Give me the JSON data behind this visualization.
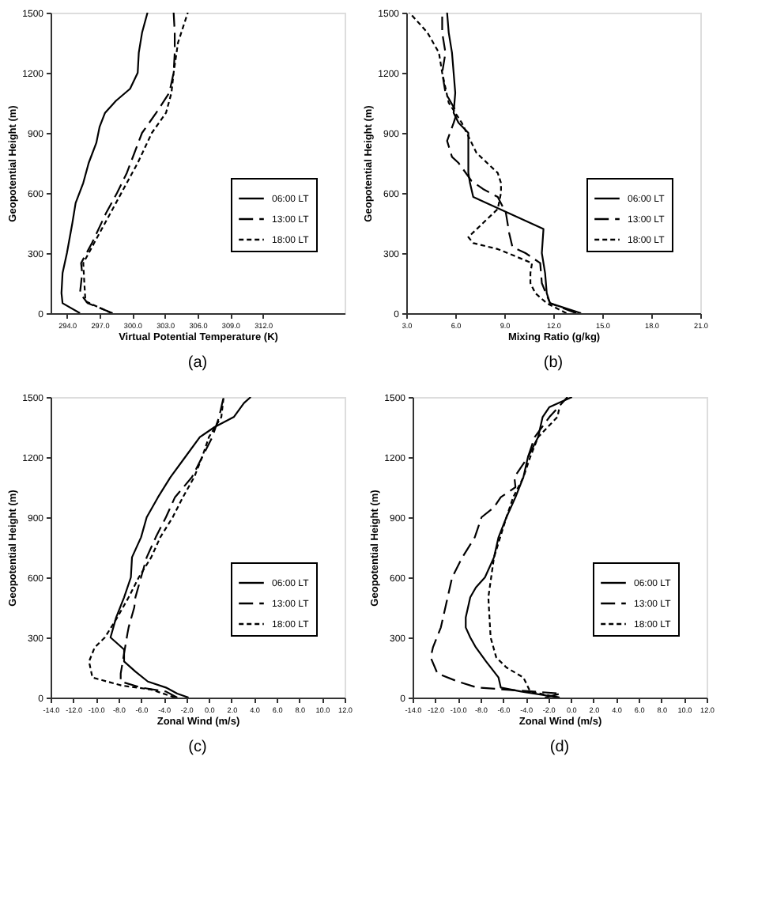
{
  "chart_data": [
    {
      "type": "line",
      "title": "(a)",
      "xlabel": "Virtual Potential Temperature (K)",
      "ylabel": "Geopotential Height (m)",
      "legend": "right",
      "grid": false,
      "xlim": [
        292.5,
        319.5
      ],
      "ylim": [
        0,
        1500
      ],
      "xticks": [
        {
          "value": 294,
          "label": "294.0"
        },
        {
          "value": 297,
          "label": "297.0"
        },
        {
          "value": 300,
          "label": "300.0"
        },
        {
          "value": 303,
          "label": "303.0"
        },
        {
          "value": 306,
          "label": "306.0"
        },
        {
          "value": 309,
          "label": "309.0"
        },
        {
          "value": 312,
          "label": "312.0"
        }
      ],
      "yticks": [
        0,
        300,
        600,
        900,
        1200,
        1500
      ],
      "series": [
        {
          "name": "06:00 LT",
          "color": "#000000",
          "line_style": "solid",
          "x": [
            295.2,
            293.6,
            293.5,
            293.6,
            294.0,
            294.5,
            294.8,
            295.5,
            296.0,
            296.7,
            297.0,
            297.5,
            298.5,
            299.8,
            300.5,
            300.6,
            300.9,
            301.4
          ],
          "values": [
            0,
            50,
            100,
            200,
            300,
            450,
            550,
            650,
            750,
            850,
            930,
            1000,
            1060,
            1120,
            1200,
            1300,
            1400,
            1500
          ]
        },
        {
          "name": "13:00 LT",
          "color": "#000000",
          "line_style": "dashed",
          "x": [
            298.2,
            295.9,
            295.2,
            295.4,
            295.3,
            296.3,
            297.6,
            298.6,
            299.5,
            300.9,
            302.2,
            303.4,
            303.8,
            303.9,
            303.9,
            303.8
          ],
          "values": [
            0,
            50,
            100,
            200,
            250,
            350,
            500,
            600,
            700,
            900,
            1000,
            1100,
            1200,
            1300,
            1400,
            1500
          ]
        },
        {
          "name": "18:00 LT",
          "color": "#000000",
          "line_style": "dotted",
          "x": [
            298.1,
            295.7,
            295.6,
            295.5,
            296.5,
            297.5,
            299.0,
            300.5,
            301.8,
            303.1,
            303.6,
            303.8,
            304.2,
            305.1
          ],
          "values": [
            0,
            60,
            150,
            250,
            350,
            450,
            600,
            750,
            900,
            1000,
            1100,
            1200,
            1350,
            1500
          ]
        }
      ]
    },
    {
      "type": "line",
      "title": "(b)",
      "xlabel": "Mixing Ratio (g/kg)",
      "ylabel": "Geopotential Height (m)",
      "legend": "right",
      "grid": false,
      "xlim": [
        3,
        21
      ],
      "ylim": [
        0,
        1500
      ],
      "xticks": [
        {
          "value": 3,
          "label": "3.0"
        },
        {
          "value": 6,
          "label": "6.0"
        },
        {
          "value": 9,
          "label": "9.0"
        },
        {
          "value": 12,
          "label": "12.0"
        },
        {
          "value": 15,
          "label": "15.0"
        },
        {
          "value": 18,
          "label": "18.0"
        },
        {
          "value": 21,
          "label": "21.0"
        }
      ],
      "yticks": [
        0,
        300,
        600,
        900,
        1200,
        1500
      ],
      "series": [
        {
          "name": "06:00 LT",
          "color": "#000000",
          "line_style": "solid",
          "x": [
            13.7,
            11.8,
            11.6,
            11.5,
            11.3,
            11.4,
            7.1,
            6.9,
            6.8,
            6.8,
            6.2,
            5.9,
            6.0,
            5.9,
            5.8,
            5.6,
            5.5
          ],
          "values": [
            0,
            50,
            100,
            200,
            300,
            420,
            580,
            650,
            700,
            900,
            950,
            1000,
            1100,
            1200,
            1300,
            1400,
            1500
          ]
        },
        {
          "name": "13:00 LT",
          "color": "#000000",
          "line_style": "dashed",
          "x": [
            13.4,
            11.8,
            11.3,
            11.2,
            10.3,
            9.5,
            9.3,
            9.1,
            8.6,
            7.7,
            7.0,
            6.2,
            5.8,
            5.5,
            5.9,
            6.1,
            5.4,
            5.2,
            5.4,
            5.2,
            5.2
          ],
          "values": [
            0,
            50,
            150,
            250,
            300,
            330,
            400,
            500,
            580,
            620,
            660,
            750,
            780,
            860,
            950,
            1000,
            1100,
            1200,
            1300,
            1400,
            1480
          ]
        },
        {
          "name": "18:00 LT",
          "color": "#000000",
          "line_style": "dotted",
          "x": [
            12.8,
            11.6,
            10.9,
            10.6,
            10.6,
            10.7,
            8.6,
            7.1,
            6.8,
            7.7,
            8.6,
            8.8,
            8.8,
            8.6,
            7.3,
            6.7,
            6.4,
            5.6,
            5.2,
            5.0,
            4.3,
            3.2
          ],
          "values": [
            0,
            50,
            100,
            150,
            200,
            250,
            320,
            350,
            380,
            450,
            520,
            600,
            650,
            700,
            800,
            900,
            950,
            1050,
            1200,
            1300,
            1400,
            1500
          ]
        }
      ]
    },
    {
      "type": "line",
      "title": "(c)",
      "xlabel": "Zonal Wind (m/s)",
      "ylabel": "Geopotential Height (m)",
      "legend": "right",
      "grid": false,
      "xlim": [
        -14,
        12
      ],
      "ylim": [
        0,
        1500
      ],
      "xticks": [
        {
          "value": -14,
          "label": "-14.0"
        },
        {
          "value": -12,
          "label": "-12.0"
        },
        {
          "value": -10,
          "label": "-10.0"
        },
        {
          "value": -8,
          "label": "-8.0"
        },
        {
          "value": -6,
          "label": "-6.0"
        },
        {
          "value": -4,
          "label": "-4.0"
        },
        {
          "value": -2,
          "label": "-2.0"
        },
        {
          "value": 0,
          "label": "0.0"
        },
        {
          "value": 2,
          "label": "2.0"
        },
        {
          "value": 4,
          "label": "4.0"
        },
        {
          "value": 6,
          "label": "6.0"
        },
        {
          "value": 8,
          "label": "8.0"
        },
        {
          "value": 10,
          "label": "10.0"
        },
        {
          "value": 12,
          "label": "12.0"
        }
      ],
      "yticks": [
        0,
        300,
        600,
        900,
        1200,
        1500
      ],
      "series": [
        {
          "name": "06:00 LT",
          "color": "#000000",
          "line_style": "solid",
          "x": [
            -1.8,
            -2.8,
            -3.8,
            -5.4,
            -6.5,
            -7.5,
            -7.5,
            -8.7,
            -8.2,
            -7.5,
            -6.9,
            -6.8,
            -6.0,
            -5.5,
            -4.5,
            -3.4,
            -2.1,
            -0.8,
            0.5,
            2.2,
            3.1,
            3.7
          ],
          "values": [
            0,
            20,
            50,
            80,
            130,
            180,
            240,
            300,
            400,
            500,
            600,
            700,
            800,
            900,
            1000,
            1100,
            1200,
            1300,
            1350,
            1400,
            1470,
            1500
          ]
        },
        {
          "name": "13:00 LT",
          "color": "#000000",
          "line_style": "dashed",
          "x": [
            -2.8,
            -3.8,
            -6.0,
            -7.8,
            -7.8,
            -7.2,
            -7.1,
            -6.6,
            -6.5,
            -6.0,
            -5.5,
            -4.7,
            -3.8,
            -3.0,
            -1.5,
            -0.6,
            0.3,
            0.9,
            1.3
          ],
          "values": [
            0,
            30,
            50,
            80,
            120,
            320,
            350,
            450,
            500,
            600,
            700,
            800,
            900,
            1000,
            1100,
            1200,
            1300,
            1400,
            1500
          ]
        },
        {
          "name": "18:00 LT",
          "color": "#000000",
          "line_style": "dotted",
          "x": [
            -3.0,
            -5.1,
            -7.7,
            -10.3,
            -10.6,
            -10.1,
            -9.2,
            -8.1,
            -7.1,
            -6.2,
            -5.1,
            -4.3,
            -3.2,
            -2.3,
            -1.3,
            -0.6,
            0.0,
            1.1,
            1.3
          ],
          "values": [
            0,
            40,
            60,
            100,
            180,
            250,
            300,
            400,
            500,
            600,
            700,
            800,
            900,
            1000,
            1100,
            1200,
            1300,
            1400,
            1500
          ]
        }
      ]
    },
    {
      "type": "line",
      "title": "(d)",
      "xlabel": "Zonal Wind (m/s)",
      "ylabel": "Geopotential Height (m)",
      "legend": "right",
      "grid": false,
      "xlim": [
        -14,
        12
      ],
      "ylim": [
        0,
        1500
      ],
      "xticks": [
        {
          "value": -14,
          "label": "-14.0"
        },
        {
          "value": -12,
          "label": "-12.0"
        },
        {
          "value": -10,
          "label": "-10.0"
        },
        {
          "value": -8,
          "label": "-8.0"
        },
        {
          "value": -6,
          "label": "-6.0"
        },
        {
          "value": -4,
          "label": "-4.0"
        },
        {
          "value": -2,
          "label": "-2.0"
        },
        {
          "value": 0,
          "label": "0.0"
        },
        {
          "value": 2,
          "label": "2.0"
        },
        {
          "value": 4,
          "label": "4.0"
        },
        {
          "value": 6,
          "label": "6.0"
        },
        {
          "value": 8,
          "label": "8.0"
        },
        {
          "value": 10,
          "label": "10.0"
        },
        {
          "value": 12,
          "label": "12.0"
        }
      ],
      "yticks": [
        0,
        300,
        600,
        900,
        1200,
        1500
      ],
      "series": [
        {
          "name": "06:00 LT",
          "color": "#000000",
          "line_style": "solid",
          "x": [
            -1.0,
            -4.4,
            -6.2,
            -6.4,
            -7.5,
            -8.4,
            -8.9,
            -9.3,
            -9.3,
            -8.9,
            -8.4,
            -7.6,
            -6.8,
            -6.4,
            -5.7,
            -4.9,
            -4.2,
            -3.8,
            -2.9,
            -2.5,
            -1.9,
            0.1
          ],
          "values": [
            0,
            30,
            50,
            100,
            180,
            250,
            300,
            350,
            400,
            500,
            550,
            600,
            700,
            800,
            900,
            1000,
            1100,
            1200,
            1300,
            1400,
            1450,
            1500
          ]
        },
        {
          "name": "13:00 LT",
          "color": "#000000",
          "line_style": "dashed",
          "x": [
            -2.3,
            -0.9,
            -8.3,
            -10.0,
            -11.8,
            -12.4,
            -12.2,
            -11.5,
            -10.9,
            -10.5,
            -9.6,
            -8.5,
            -7.9,
            -6.8,
            -6.2,
            -4.9,
            -5.0,
            -3.8,
            -3.2,
            -1.9,
            -0.3
          ],
          "values": [
            0,
            20,
            50,
            80,
            120,
            200,
            250,
            350,
            500,
            600,
            700,
            800,
            900,
            950,
            1000,
            1050,
            1100,
            1200,
            1300,
            1400,
            1500
          ]
        },
        {
          "name": "18:00 LT",
          "color": "#000000",
          "line_style": "dotted",
          "x": [
            -1.0,
            -3.6,
            -4.2,
            -5.7,
            -6.6,
            -7.1,
            -7.3,
            -6.8,
            -5.7,
            -5.1,
            -4.2,
            -3.6,
            -2.9,
            -1.2,
            -1.0
          ],
          "values": [
            0,
            30,
            100,
            150,
            200,
            300,
            500,
            700,
            900,
            1000,
            1100,
            1200,
            1300,
            1400,
            1450
          ]
        }
      ]
    }
  ]
}
